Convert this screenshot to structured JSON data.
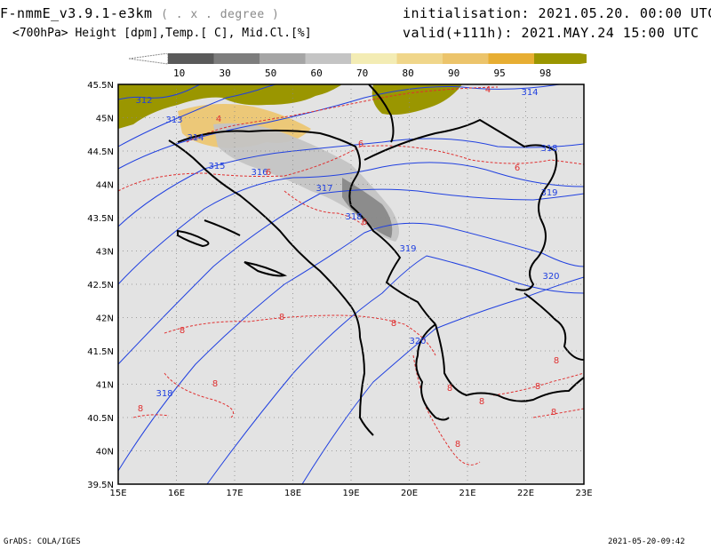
{
  "header": {
    "model": "F-nmmE_v3.9.1-e3km",
    "units_note": "( . x . degree )",
    "init_label": "initialisation:",
    "init_value": "2021.05.20.  00:00 UTC",
    "fields": "<700hPa> Height [dpm],Temp.[ C], Mid.Cl.[%]",
    "valid_label": "valid(+111h):",
    "valid_value": "2021.MAY.24 15:00 UTC"
  },
  "legend": {
    "levels": [
      "10",
      "30",
      "50",
      "60",
      "70",
      "80",
      "90",
      "95",
      "98"
    ],
    "colors": [
      "#5a5a5a",
      "#7d7d7d",
      "#a5a5a5",
      "#c4c4c4",
      "#f3ecb4",
      "#f0d68a",
      "#ecc46b",
      "#e7ae33",
      "#9a9600"
    ]
  },
  "map": {
    "lat_labels": [
      "45.5N",
      "45N",
      "44.5N",
      "44N",
      "43.5N",
      "43N",
      "42.5N",
      "42N",
      "41.5N",
      "41N",
      "40.5N",
      "40N",
      "39.5N"
    ],
    "lon_labels": [
      "15E",
      "16E",
      "17E",
      "18E",
      "19E",
      "20E",
      "21E",
      "22E",
      "23E"
    ],
    "height_labels": [
      "312",
      "313",
      "314",
      "315",
      "316",
      "317",
      "318",
      "319",
      "320",
      "318",
      "319",
      "320",
      "314",
      "318"
    ],
    "temp_labels": [
      "4",
      "4",
      "6",
      "6",
      "6",
      "6",
      "8",
      "8",
      "8",
      "8",
      "8",
      "8",
      "8",
      "8",
      "8",
      "8",
      "8"
    ],
    "colors": {
      "background": "#e3e3e3",
      "height_contour": "#2040e0",
      "temp_contour": "#e03030",
      "border": "#000000"
    }
  },
  "footer": {
    "left": "GrADS: COLA/IGES",
    "right": "2021-05-20-09:42"
  }
}
